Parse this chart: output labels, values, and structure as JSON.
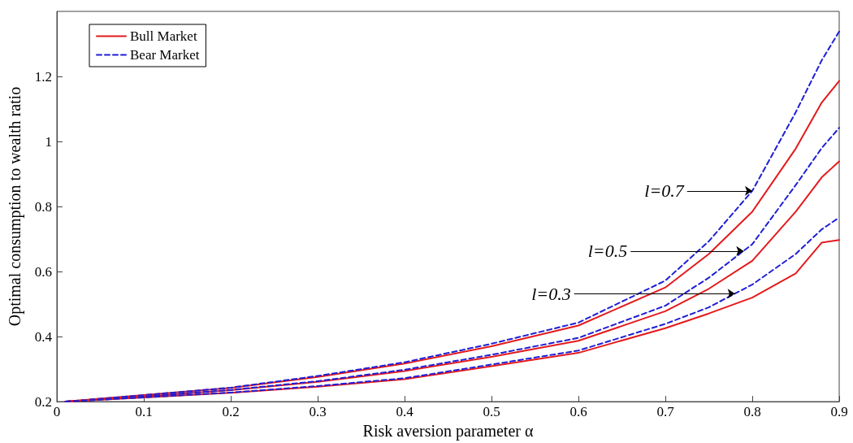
{
  "chart_data": {
    "type": "line",
    "xlabel": "Risk aversion parameter α",
    "ylabel": "Optimal consumption to wealth ratio",
    "x": [
      0.01,
      0.1,
      0.2,
      0.3,
      0.4,
      0.5,
      0.6,
      0.7,
      0.75,
      0.8,
      0.85,
      0.88,
      0.9
    ],
    "series": [
      {
        "name": "Bull Market",
        "color": "#e41a1c",
        "line_style": "solid",
        "values": [
          0.2,
          0.22,
          0.242,
          0.276,
          0.317,
          0.37,
          0.434,
          0.551,
          0.654,
          0.784,
          0.978,
          1.12,
          1.186
        ]
      },
      {
        "name": "Bear Market",
        "color": "#1f1fd6",
        "line_style": "dashed",
        "values": [
          0.2,
          0.22,
          0.243,
          0.279,
          0.321,
          0.378,
          0.443,
          0.572,
          0.693,
          0.848,
          1.09,
          1.25,
          1.338
        ]
      },
      {
        "color": "#e41a1c",
        "line_style": "solid",
        "values": [
          0.2,
          0.216,
          0.235,
          0.261,
          0.294,
          0.338,
          0.387,
          0.478,
          0.547,
          0.633,
          0.784,
          0.89,
          0.939
        ]
      },
      {
        "color": "#1f1fd6",
        "line_style": "dashed",
        "values": [
          0.2,
          0.216,
          0.236,
          0.263,
          0.298,
          0.344,
          0.396,
          0.495,
          0.581,
          0.684,
          0.866,
          0.98,
          1.042
        ]
      },
      {
        "color": "#e41a1c",
        "line_style": "solid",
        "values": [
          0.2,
          0.213,
          0.227,
          0.246,
          0.269,
          0.309,
          0.35,
          0.426,
          0.471,
          0.52,
          0.594,
          0.689,
          0.697
        ]
      },
      {
        "color": "#1f1fd6",
        "line_style": "dashed",
        "values": [
          0.2,
          0.213,
          0.228,
          0.248,
          0.272,
          0.314,
          0.357,
          0.439,
          0.49,
          0.56,
          0.654,
          0.73,
          0.766
        ]
      }
    ],
    "annotations": [
      {
        "text": "l=0.7",
        "x": 0.8,
        "y": 0.848
      },
      {
        "text": "l=0.5",
        "x": 0.79,
        "y": 0.663
      },
      {
        "text": "l=0.3",
        "x": 0.78,
        "y": 0.532
      }
    ],
    "xlim": [
      0,
      0.9
    ],
    "xticks": [
      0,
      0.1,
      0.2,
      0.3,
      0.4,
      0.5,
      0.6,
      0.7,
      0.8,
      0.9
    ],
    "ylim": [
      0.2,
      1.4
    ],
    "yticks": [
      0.2,
      0.4,
      0.6,
      0.8,
      1,
      1.2
    ],
    "legend": "top left",
    "grid": false,
    "marker": "none"
  }
}
